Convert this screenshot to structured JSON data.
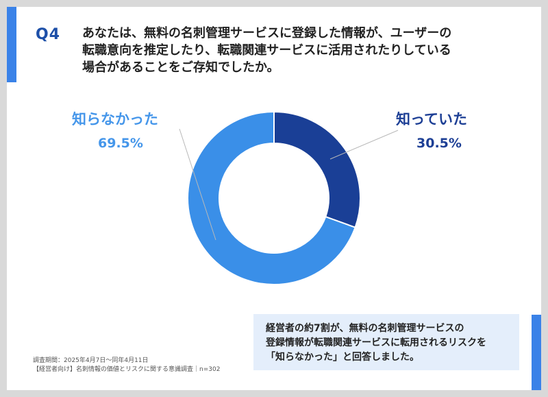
{
  "question": {
    "label": "Q4",
    "lines": [
      "あなたは、無料の名刺管理サービスに登録した情報が、ユーザーの",
      "転職意向を推定したり、転職関連サービスに活用されたりしている",
      "場合があることをご存知でしたか。"
    ]
  },
  "colors": {
    "known": "#1a3f96",
    "unknown": "#3a8fe8",
    "accent": "#3a82e8",
    "title": "#1d4fa8",
    "summary_bg": "#e4eefb"
  },
  "chart_data": {
    "type": "pie",
    "title": "",
    "donut": true,
    "slices": [
      {
        "label": "知っていた",
        "value": 30.5,
        "value_label": "30.5%"
      },
      {
        "label": "知らなかった",
        "value": 69.5,
        "value_label": "69.5%"
      }
    ]
  },
  "summary": {
    "lines": [
      "経営者の約7割が、無料の名刺管理サービスの",
      "登録情報が転職関連サービスに転用されるリスクを",
      "「知らなかった」と回答しました。"
    ]
  },
  "footnote": {
    "lines": [
      "調査期間：2025年4月7日〜同年4月11日",
      "【経営者向け】名刺情報の価値とリスクに関する意識調査｜n=302"
    ]
  }
}
